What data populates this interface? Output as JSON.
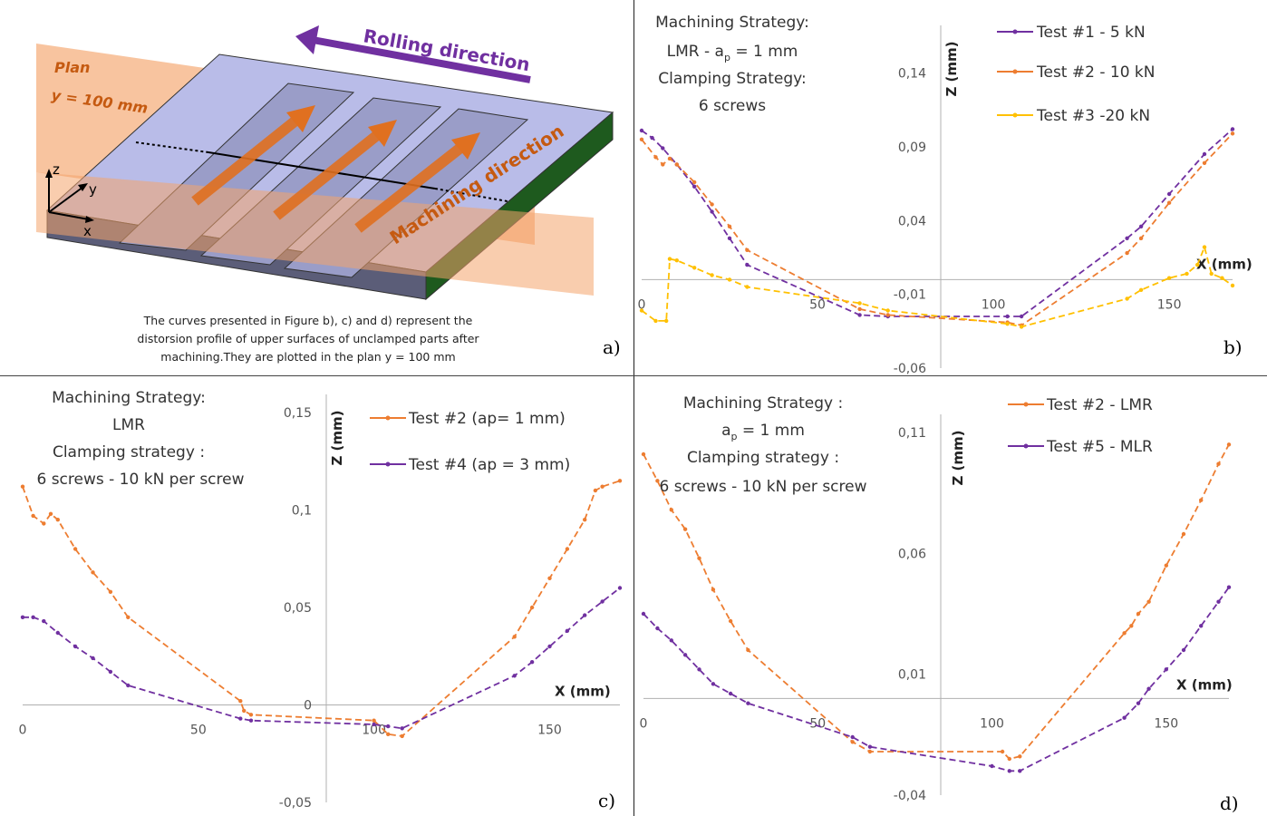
{
  "figure_a": {
    "labels": {
      "plan_line1": "Plan",
      "plan_line2": "y = 100 mm",
      "rolling": "Rolling direction",
      "machining": "Machining direction",
      "axis_z": "z",
      "axis_y": "y",
      "axis_x": "x"
    },
    "caption_lines": [
      "The curves presented in Figure b), c) and d) represent the",
      "distorsion profile of upper surfaces of unclamped parts after",
      "machining.They are plotted in the plan y = 100 mm"
    ],
    "panel_letter": "a)",
    "colors": {
      "plan": "#f4a46c",
      "part_top": "#b9bce8",
      "part_side": "#5b5d78",
      "arrow_rolling": "#7030a0",
      "arrow_machining": "#e07020",
      "green_face": "#1e5a1e"
    }
  },
  "chart_data": [
    {
      "id": "b",
      "type": "line",
      "panel_letter": "b)",
      "annotation": [
        "Machining Strategy:",
        "LMR - a",
        "p",
        " = 1 mm",
        "Clamping Strategy:",
        "6 screws"
      ],
      "xlabel": "X (mm)",
      "ylabel": "Z (mm)",
      "xlim": [
        0,
        168
      ],
      "ylim": [
        -0.06,
        0.16
      ],
      "xticks": [
        {
          "v": 0,
          "t": "0"
        },
        {
          "v": 50,
          "t": "50"
        },
        {
          "v": 100,
          "t": "100"
        },
        {
          "v": 150,
          "t": "150"
        }
      ],
      "yticks": [
        {
          "v": 0.14,
          "t": "0,14"
        },
        {
          "v": 0.09,
          "t": "0,09"
        },
        {
          "v": 0.04,
          "t": "0,04"
        },
        {
          "v": -0.01,
          "t": "-0,01"
        },
        {
          "v": -0.06,
          "t": "-0,06"
        }
      ],
      "series": [
        {
          "name": "Test #1 - 5 kN",
          "color": "#7030a0",
          "x": [
            0,
            3,
            6,
            10,
            15,
            20,
            25,
            30,
            62,
            70,
            104,
            108,
            138,
            142,
            150,
            160,
            168
          ],
          "y": [
            0.101,
            0.096,
            0.089,
            0.078,
            0.063,
            0.046,
            0.028,
            0.01,
            -0.024,
            -0.025,
            -0.025,
            -0.025,
            0.028,
            0.036,
            0.058,
            0.085,
            0.102
          ]
        },
        {
          "name": "Test #2 - 10 kN",
          "color": "#ed7d31",
          "x": [
            0,
            4,
            6,
            8,
            10,
            15,
            20,
            25,
            30,
            62,
            70,
            104,
            108,
            138,
            142,
            150,
            160,
            168
          ],
          "y": [
            0.095,
            0.083,
            0.078,
            0.082,
            0.078,
            0.066,
            0.051,
            0.036,
            0.02,
            -0.02,
            -0.024,
            -0.029,
            -0.031,
            0.018,
            0.028,
            0.052,
            0.079,
            0.099
          ]
        },
        {
          "name": "Test #3 -20 kN",
          "color": "#ffc000",
          "x": [
            0,
            4,
            7,
            8,
            10,
            15,
            20,
            25,
            30,
            62,
            70,
            104,
            108,
            138,
            142,
            150,
            155,
            158,
            160,
            162,
            165,
            168
          ],
          "y": [
            -0.021,
            -0.028,
            -0.028,
            0.014,
            0.013,
            0.008,
            0.003,
            0.0,
            -0.005,
            -0.016,
            -0.021,
            -0.03,
            -0.032,
            -0.013,
            -0.007,
            0.001,
            0.004,
            0.01,
            0.022,
            0.004,
            0.001,
            -0.004
          ]
        }
      ]
    },
    {
      "id": "c",
      "type": "line",
      "panel_letter": "c)",
      "annotation": [
        "Machining Strategy:",
        "LMR",
        "Clamping strategy :",
        "6 screws - 10 kN per screw"
      ],
      "xlabel": "X (mm)",
      "ylabel": "Z (mm)",
      "xlim": [
        0,
        170
      ],
      "ylim": [
        -0.05,
        0.15
      ],
      "xticks": [
        {
          "v": 0,
          "t": "0"
        },
        {
          "v": 50,
          "t": "50"
        },
        {
          "v": 100,
          "t": "100"
        },
        {
          "v": 150,
          "t": "150"
        }
      ],
      "yticks": [
        {
          "v": 0.15,
          "t": "0,15"
        },
        {
          "v": 0.1,
          "t": "0,1"
        },
        {
          "v": 0.05,
          "t": "0,05"
        },
        {
          "v": 0,
          "t": "0"
        },
        {
          "v": -0.05,
          "t": "-0,05"
        }
      ],
      "series": [
        {
          "name": "Test #2 (ap= 1 mm)",
          "color": "#ed7d31",
          "x": [
            0,
            3,
            6,
            8,
            10,
            15,
            20,
            25,
            30,
            62,
            63,
            65,
            100,
            104,
            108,
            140,
            145,
            150,
            155,
            160,
            163,
            165,
            170
          ],
          "y": [
            0.112,
            0.097,
            0.093,
            0.098,
            0.095,
            0.08,
            0.068,
            0.058,
            0.045,
            0.002,
            -0.003,
            -0.005,
            -0.008,
            -0.015,
            -0.016,
            0.035,
            0.05,
            0.065,
            0.08,
            0.095,
            0.11,
            0.112,
            0.115
          ]
        },
        {
          "name": "Test #4 (ap = 3 mm)",
          "color": "#7030a0",
          "x": [
            0,
            3,
            6,
            10,
            15,
            20,
            25,
            30,
            62,
            65,
            100,
            104,
            108,
            140,
            145,
            150,
            155,
            160,
            165,
            170
          ],
          "y": [
            0.045,
            0.045,
            0.043,
            0.037,
            0.03,
            0.024,
            0.017,
            0.01,
            -0.007,
            -0.008,
            -0.01,
            -0.011,
            -0.012,
            0.015,
            0.022,
            0.03,
            0.038,
            0.046,
            0.053,
            0.06
          ]
        }
      ]
    },
    {
      "id": "d",
      "type": "line",
      "panel_letter": "d)",
      "annotation": [
        "Machining Strategy :",
        "a",
        "p",
        " = 1 mm",
        "Clamping strategy :",
        "6 screws - 10 kN per screw"
      ],
      "xlabel": "X (mm)",
      "ylabel": "Z (mm)",
      "xlim": [
        0,
        168
      ],
      "ylim": [
        -0.04,
        0.11
      ],
      "xticks": [
        {
          "v": 0,
          "t": "0"
        },
        {
          "v": 50,
          "t": "50"
        },
        {
          "v": 100,
          "t": "100"
        },
        {
          "v": 150,
          "t": "150"
        }
      ],
      "yticks": [
        {
          "v": 0.11,
          "t": "0,11"
        },
        {
          "v": 0.06,
          "t": "0,06"
        },
        {
          "v": 0.01,
          "t": "0,01"
        },
        {
          "v": -0.04,
          "t": "-0,04"
        }
      ],
      "series": [
        {
          "name": "Test  #2 - LMR",
          "color": "#ed7d31",
          "x": [
            0,
            4,
            8,
            12,
            16,
            20,
            25,
            30,
            60,
            65,
            103,
            105,
            108,
            138,
            140,
            142,
            145,
            150,
            155,
            160,
            165,
            168
          ],
          "y": [
            0.101,
            0.09,
            0.078,
            0.07,
            0.058,
            0.045,
            0.032,
            0.02,
            -0.018,
            -0.022,
            -0.022,
            -0.025,
            -0.024,
            0.027,
            0.03,
            0.035,
            0.04,
            0.055,
            0.068,
            0.082,
            0.097,
            0.105
          ]
        },
        {
          "name": "Test  #5 - MLR",
          "color": "#7030a0",
          "x": [
            0,
            4,
            8,
            12,
            16,
            20,
            25,
            30,
            60,
            65,
            100,
            105,
            108,
            138,
            142,
            145,
            150,
            155,
            160,
            165,
            168
          ],
          "y": [
            0.035,
            0.029,
            0.024,
            0.018,
            0.012,
            0.006,
            0.002,
            -0.002,
            -0.016,
            -0.02,
            -0.028,
            -0.03,
            -0.03,
            -0.008,
            -0.002,
            0.004,
            0.012,
            0.02,
            0.03,
            0.04,
            0.046
          ]
        }
      ]
    }
  ]
}
